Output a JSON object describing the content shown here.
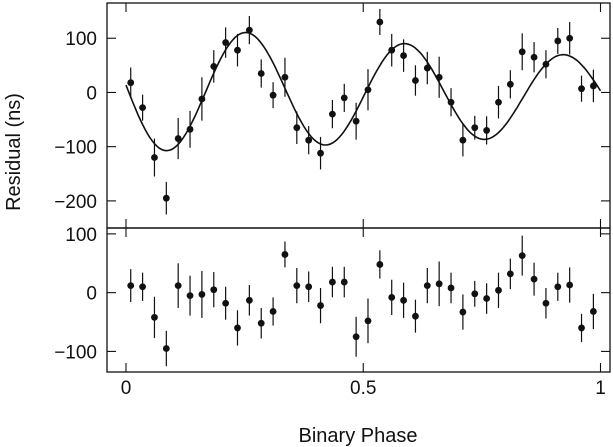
{
  "chart_data": [
    {
      "type": "scatter",
      "panel": "top",
      "xlabel": "Binary Phase",
      "ylabel": "Residual (ns)",
      "xlim": [
        -0.04,
        1.02
      ],
      "ylim": [
        -250,
        165
      ],
      "yticks": [
        100,
        0,
        -100,
        -200
      ],
      "ytick_labels": [
        "100",
        "0",
        "−100",
        "−200"
      ],
      "grid": false,
      "series": [
        {
          "kind": "points_with_errorbars",
          "x": [
            0.01,
            0.035,
            0.06,
            0.085,
            0.11,
            0.135,
            0.16,
            0.185,
            0.21,
            0.235,
            0.26,
            0.285,
            0.31,
            0.335,
            0.36,
            0.385,
            0.41,
            0.435,
            0.46,
            0.485,
            0.51,
            0.535,
            0.56,
            0.585,
            0.61,
            0.635,
            0.66,
            0.685,
            0.71,
            0.735,
            0.76,
            0.785,
            0.81,
            0.835,
            0.86,
            0.885,
            0.91,
            0.935,
            0.96,
            0.985
          ],
          "y": [
            18,
            -28,
            -120,
            -195,
            -85,
            -68,
            -12,
            48,
            92,
            78,
            115,
            35,
            -5,
            28,
            -65,
            -88,
            -112,
            -40,
            -10,
            -53,
            5,
            130,
            78,
            68,
            22,
            45,
            28,
            -18,
            -88,
            -65,
            -70,
            -18,
            15,
            75,
            65,
            52,
            95,
            100,
            7,
            12
          ],
          "err": [
            28,
            24,
            35,
            30,
            38,
            34,
            40,
            30,
            28,
            30,
            26,
            26,
            24,
            36,
            30,
            26,
            30,
            26,
            26,
            34,
            38,
            24,
            30,
            30,
            28,
            30,
            38,
            26,
            30,
            22,
            26,
            30,
            26,
            34,
            28,
            26,
            24,
            30,
            24,
            30
          ]
        },
        {
          "kind": "model_curve",
          "note": "sinusoidal model fit"
        }
      ]
    },
    {
      "type": "scatter",
      "panel": "bottom",
      "xlabel": "Binary Phase",
      "ylabel": "Residual (ns)",
      "xlim": [
        -0.04,
        1.02
      ],
      "ylim": [
        -135,
        110
      ],
      "yticks": [
        100,
        0,
        -100
      ],
      "ytick_labels": [
        "100",
        "0",
        "−100"
      ],
      "xticks": [
        0,
        0.5,
        1
      ],
      "xtick_labels": [
        "0",
        "0.5",
        "1"
      ],
      "grid": false,
      "series": [
        {
          "kind": "points_with_errorbars",
          "x": [
            0.01,
            0.035,
            0.06,
            0.085,
            0.11,
            0.135,
            0.16,
            0.185,
            0.21,
            0.235,
            0.26,
            0.285,
            0.31,
            0.335,
            0.36,
            0.385,
            0.41,
            0.435,
            0.46,
            0.485,
            0.51,
            0.535,
            0.56,
            0.585,
            0.61,
            0.635,
            0.66,
            0.685,
            0.71,
            0.735,
            0.76,
            0.785,
            0.81,
            0.835,
            0.86,
            0.885,
            0.91,
            0.935,
            0.96,
            0.985
          ],
          "y": [
            12,
            10,
            -42,
            -95,
            12,
            -5,
            -3,
            5,
            -18,
            -60,
            -13,
            -52,
            -32,
            65,
            12,
            10,
            -22,
            18,
            18,
            -75,
            -48,
            48,
            -8,
            -13,
            -40,
            12,
            15,
            8,
            -33,
            -2,
            -10,
            4,
            32,
            63,
            23,
            -18,
            10,
            13,
            -60,
            -32
          ],
          "err": [
            28,
            24,
            35,
            30,
            38,
            34,
            40,
            30,
            28,
            30,
            26,
            26,
            24,
            22,
            30,
            26,
            30,
            26,
            26,
            34,
            38,
            24,
            30,
            30,
            28,
            30,
            38,
            26,
            30,
            22,
            26,
            30,
            26,
            34,
            28,
            26,
            24,
            30,
            24,
            30
          ]
        }
      ]
    }
  ]
}
